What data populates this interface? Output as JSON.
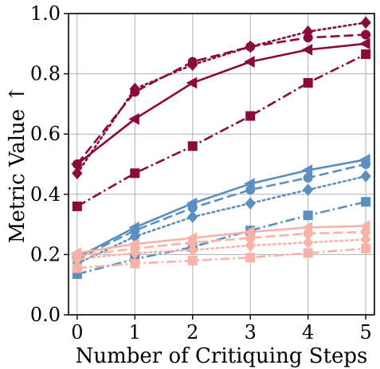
{
  "chart_data": {
    "type": "line",
    "xlabel": "Number of Critiquing Steps",
    "ylabel": "Metric Value ↑",
    "x": [
      0,
      1,
      2,
      3,
      4,
      5
    ],
    "xlim": [
      -0.15,
      5.15
    ],
    "ylim": [
      0.0,
      1.0
    ],
    "xticks": [
      "0",
      "1",
      "2",
      "3",
      "4",
      "5"
    ],
    "yticks": [
      "0.0",
      "0.2",
      "0.4",
      "0.6",
      "0.8",
      "1.0"
    ],
    "grid": true,
    "colors": {
      "crimson": "#8b0a3c",
      "steel_blue": "#5b8fc0",
      "salmon": "#f8b2a8",
      "grid": "#b0b0b0"
    },
    "series": [
      {
        "color": "#8b0a3c",
        "linestyle": "dotted",
        "marker": "diamond",
        "values": [
          0.47,
          0.75,
          0.83,
          0.89,
          0.94,
          0.97
        ]
      },
      {
        "color": "#8b0a3c",
        "linestyle": "dashed",
        "marker": "circle",
        "values": [
          0.5,
          0.74,
          0.84,
          0.89,
          0.92,
          0.93
        ]
      },
      {
        "color": "#8b0a3c",
        "linestyle": "solid",
        "marker": "triangle-left",
        "values": [
          0.5,
          0.65,
          0.77,
          0.84,
          0.88,
          0.9
        ]
      },
      {
        "color": "#8b0a3c",
        "linestyle": "dashdot",
        "marker": "square",
        "values": [
          0.36,
          0.47,
          0.56,
          0.66,
          0.77,
          0.865
        ]
      },
      {
        "color": "#5b8fc0",
        "linestyle": "solid",
        "marker": "triangle-left",
        "values": [
          0.19,
          0.29,
          0.37,
          0.435,
          0.48,
          0.515
        ]
      },
      {
        "color": "#5b8fc0",
        "linestyle": "dashed",
        "marker": "circle",
        "values": [
          0.185,
          0.28,
          0.355,
          0.415,
          0.455,
          0.5
        ]
      },
      {
        "color": "#5b8fc0",
        "linestyle": "dotted",
        "marker": "diamond",
        "values": [
          0.17,
          0.26,
          0.325,
          0.37,
          0.415,
          0.46
        ]
      },
      {
        "color": "#5b8fc0",
        "linestyle": "dashdot",
        "marker": "square",
        "values": [
          0.135,
          0.185,
          0.225,
          0.28,
          0.33,
          0.375
        ]
      },
      {
        "color": "#f8b2a8",
        "linestyle": "solid",
        "marker": "triangle-left",
        "values": [
          0.205,
          0.235,
          0.255,
          0.275,
          0.29,
          0.295
        ]
      },
      {
        "color": "#f8b2a8",
        "linestyle": "dashed",
        "marker": "circle",
        "values": [
          0.195,
          0.22,
          0.24,
          0.255,
          0.27,
          0.275
        ]
      },
      {
        "color": "#f8b2a8",
        "linestyle": "dotted",
        "marker": "diamond",
        "values": [
          0.185,
          0.205,
          0.215,
          0.23,
          0.24,
          0.25
        ]
      },
      {
        "color": "#f8b2a8",
        "linestyle": "dashdot",
        "marker": "square",
        "values": [
          0.155,
          0.17,
          0.18,
          0.19,
          0.205,
          0.22
        ]
      }
    ]
  }
}
